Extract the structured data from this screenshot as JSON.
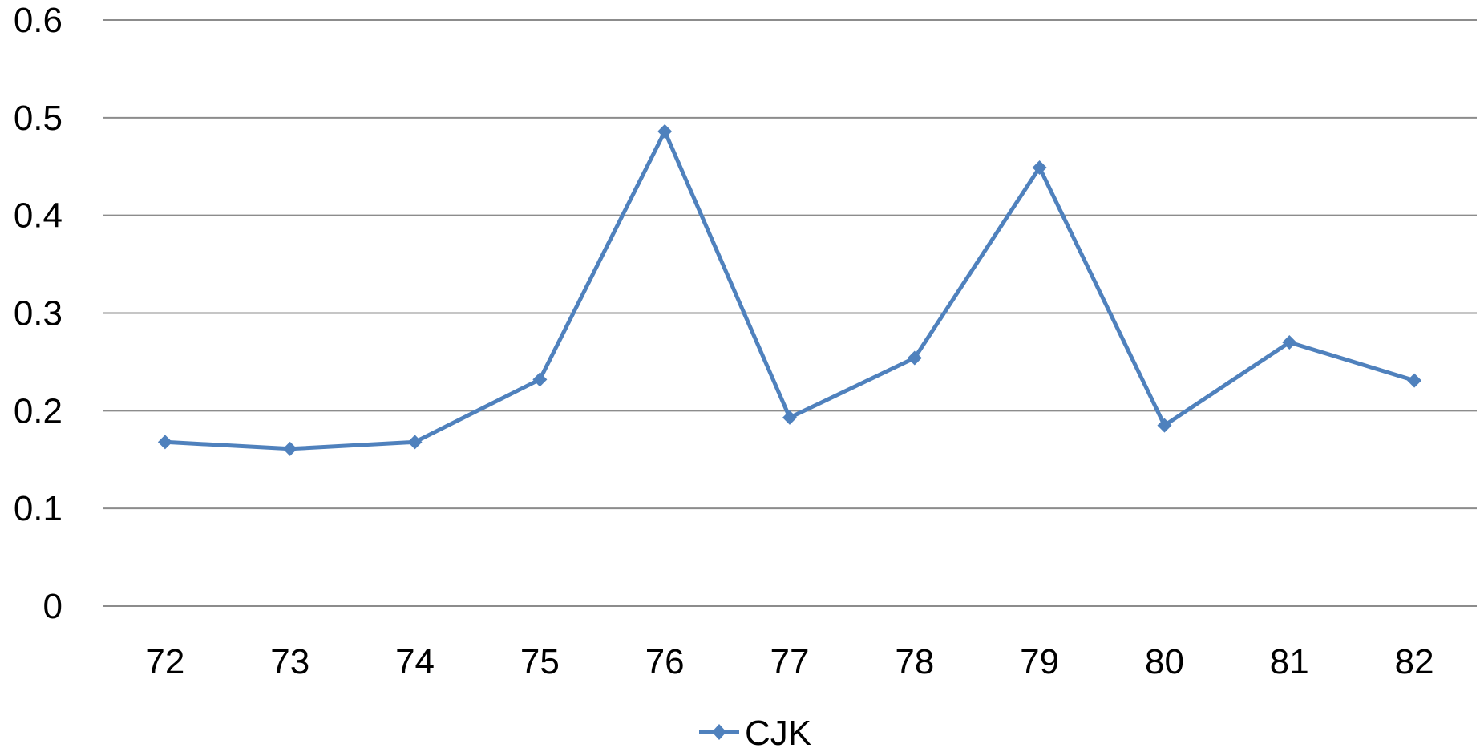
{
  "chart_data": {
    "type": "line",
    "title": "",
    "xlabel": "",
    "ylabel": "",
    "categories": [
      "72",
      "73",
      "74",
      "75",
      "76",
      "77",
      "78",
      "79",
      "80",
      "81",
      "82"
    ],
    "series": [
      {
        "name": "CJK",
        "color": "#4f81bd",
        "marker": "diamond",
        "values": [
          0.168,
          0.161,
          0.168,
          0.232,
          0.486,
          0.193,
          0.254,
          0.449,
          0.185,
          0.27,
          0.231
        ]
      }
    ],
    "ylim": [
      0,
      0.6
    ],
    "yticks": [
      "0",
      "0.1",
      "0.2",
      "0.3",
      "0.4",
      "0.5",
      "0.6"
    ],
    "grid": true,
    "legend_position": "bottom"
  }
}
